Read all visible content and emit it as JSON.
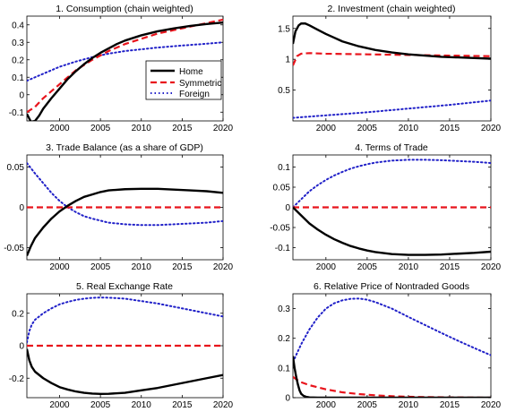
{
  "figure": {
    "colors": {
      "home": "#000000",
      "symmetric": "#e8141c",
      "foreign": "#2020c8",
      "axis": "#000000"
    }
  },
  "chart_data": [
    {
      "type": "line",
      "title": "1. Consumption (chain weighted)",
      "xlim": [
        1996,
        2020
      ],
      "ylim": [
        -0.15,
        0.45
      ],
      "xticks": [
        2000,
        2005,
        2010,
        2015,
        2020
      ],
      "xtick_labels": [
        "2000",
        "2005",
        "2010",
        "2015",
        "2020"
      ],
      "yticks": [
        -0.1,
        0,
        0.1,
        0.2,
        0.3,
        0.4
      ],
      "ytick_labels": [
        "-0.1",
        "0",
        "0.1",
        "0.2",
        "0.3",
        "0.4"
      ],
      "legend": {
        "placement": "center-right",
        "entries": [
          "Home",
          "Symmetric",
          "Foreign"
        ]
      },
      "series": [
        {
          "name": "Home",
          "style": "solid",
          "x": [
            1996,
            1996.5,
            1997,
            1997.5,
            1998,
            1999,
            2000,
            2001,
            2002,
            2003,
            2004,
            2005,
            2006,
            2007,
            2008,
            2010,
            2012,
            2014,
            2016,
            2018,
            2020
          ],
          "y": [
            -0.11,
            -0.155,
            -0.15,
            -0.12,
            -0.08,
            -0.02,
            0.035,
            0.09,
            0.135,
            0.175,
            0.21,
            0.24,
            0.265,
            0.29,
            0.31,
            0.34,
            0.363,
            0.38,
            0.394,
            0.405,
            0.413
          ]
        },
        {
          "name": "Symmetric",
          "style": "dashed",
          "x": [
            1996,
            1997,
            1998,
            1999,
            2000,
            2001,
            2002,
            2003,
            2004,
            2005,
            2006,
            2007,
            2008,
            2010,
            2012,
            2014,
            2016,
            2018,
            2020
          ],
          "y": [
            -0.1,
            -0.07,
            -0.02,
            0.02,
            0.06,
            0.1,
            0.14,
            0.17,
            0.2,
            0.225,
            0.25,
            0.27,
            0.29,
            0.32,
            0.35,
            0.37,
            0.39,
            0.41,
            0.43
          ]
        },
        {
          "name": "Foreign",
          "style": "dotted",
          "x": [
            1996,
            1997,
            1998,
            2000,
            2002,
            2004,
            2006,
            2008,
            2010,
            2012,
            2014,
            2016,
            2018,
            2020
          ],
          "y": [
            0.08,
            0.1,
            0.12,
            0.16,
            0.19,
            0.215,
            0.235,
            0.25,
            0.26,
            0.27,
            0.278,
            0.285,
            0.292,
            0.3
          ]
        }
      ]
    },
    {
      "type": "line",
      "title": "2. Investment (chain weighted)",
      "xlim": [
        1996,
        2020
      ],
      "ylim": [
        0,
        1.7
      ],
      "xticks": [
        2000,
        2005,
        2010,
        2015,
        2020
      ],
      "xtick_labels": [
        "2000",
        "2005",
        "2010",
        "2015",
        "2020"
      ],
      "yticks": [
        0.5,
        1,
        1.5
      ],
      "ytick_labels": [
        "0.5",
        "1",
        "1.5"
      ],
      "series": [
        {
          "name": "Home",
          "style": "solid",
          "x": [
            1996,
            1996.3,
            1996.7,
            1997,
            1997.5,
            1998,
            1999,
            2000,
            2001,
            2002,
            2004,
            2006,
            2008,
            2010,
            2012,
            2014,
            2016,
            2018,
            2020
          ],
          "y": [
            1.25,
            1.45,
            1.55,
            1.58,
            1.58,
            1.55,
            1.48,
            1.41,
            1.35,
            1.29,
            1.21,
            1.15,
            1.11,
            1.08,
            1.06,
            1.04,
            1.03,
            1.02,
            1.01
          ]
        },
        {
          "name": "Symmetric",
          "style": "dashed",
          "x": [
            1996,
            1996.5,
            1997,
            1998,
            2000,
            2005,
            2010,
            2015,
            2020
          ],
          "y": [
            0.9,
            1.05,
            1.09,
            1.1,
            1.09,
            1.08,
            1.07,
            1.06,
            1.05
          ]
        },
        {
          "name": "Foreign",
          "style": "dotted",
          "x": [
            1996,
            2000,
            2005,
            2010,
            2015,
            2020
          ],
          "y": [
            0.05,
            0.09,
            0.14,
            0.2,
            0.26,
            0.33
          ]
        }
      ]
    },
    {
      "type": "line",
      "title": "3. Trade Balance (as a share of GDP)",
      "xlim": [
        1996,
        2020
      ],
      "ylim": [
        -0.065,
        0.065
      ],
      "xticks": [
        2000,
        2005,
        2010,
        2015,
        2020
      ],
      "xtick_labels": [
        "2000",
        "2005",
        "2010",
        "2015",
        "2020"
      ],
      "yticks": [
        -0.05,
        0,
        0.05
      ],
      "ytick_labels": [
        "-0.05",
        "0",
        "0.05"
      ],
      "series": [
        {
          "name": "Home",
          "style": "solid",
          "x": [
            1996,
            1996.5,
            1997,
            1998,
            1999,
            2000,
            2001,
            2002,
            2003,
            2004,
            2005,
            2006,
            2008,
            2010,
            2012,
            2014,
            2016,
            2018,
            2020
          ],
          "y": [
            -0.06,
            -0.048,
            -0.038,
            -0.025,
            -0.014,
            -0.005,
            0.002,
            0.008,
            0.013,
            0.016,
            0.019,
            0.021,
            0.0225,
            0.023,
            0.023,
            0.022,
            0.021,
            0.02,
            0.018
          ]
        },
        {
          "name": "Symmetric",
          "style": "dashed",
          "x": [
            1996,
            2020
          ],
          "y": [
            0,
            0
          ]
        },
        {
          "name": "Foreign",
          "style": "dotted",
          "x": [
            1996,
            1997,
            1998,
            1999,
            2000,
            2001,
            2002,
            2003,
            2004,
            2006,
            2008,
            2010,
            2012,
            2014,
            2016,
            2018,
            2020
          ],
          "y": [
            0.055,
            0.042,
            0.03,
            0.018,
            0.008,
            0,
            -0.006,
            -0.011,
            -0.014,
            -0.019,
            -0.021,
            -0.022,
            -0.022,
            -0.021,
            -0.02,
            -0.019,
            -0.017
          ]
        }
      ]
    },
    {
      "type": "line",
      "title": "4. Terms of Trade",
      "xlim": [
        1996,
        2020
      ],
      "ylim": [
        -0.13,
        0.13
      ],
      "xticks": [
        2000,
        2005,
        2010,
        2015,
        2020
      ],
      "xtick_labels": [
        "2000",
        "2005",
        "2010",
        "2015",
        "2020"
      ],
      "yticks": [
        -0.1,
        -0.05,
        0,
        0.05,
        0.1
      ],
      "ytick_labels": [
        "-0.1",
        "-0.05",
        "0",
        "0.05",
        "0.1"
      ],
      "series": [
        {
          "name": "Home",
          "style": "solid",
          "x": [
            1996,
            1997,
            1998,
            1999,
            2000,
            2001,
            2002,
            2003,
            2004,
            2005,
            2006,
            2008,
            2010,
            2012,
            2014,
            2016,
            2018,
            2020
          ],
          "y": [
            0,
            -0.02,
            -0.04,
            -0.055,
            -0.068,
            -0.079,
            -0.088,
            -0.096,
            -0.102,
            -0.107,
            -0.111,
            -0.116,
            -0.118,
            -0.118,
            -0.117,
            -0.115,
            -0.113,
            -0.11
          ]
        },
        {
          "name": "Symmetric",
          "style": "dashed",
          "x": [
            1996,
            2020
          ],
          "y": [
            0,
            0
          ]
        },
        {
          "name": "Foreign",
          "style": "dotted",
          "x": [
            1996,
            1997,
            1998,
            1999,
            2000,
            2001,
            2002,
            2003,
            2004,
            2005,
            2006,
            2008,
            2010,
            2012,
            2014,
            2016,
            2018,
            2020
          ],
          "y": [
            0,
            0.02,
            0.04,
            0.055,
            0.068,
            0.079,
            0.088,
            0.096,
            0.102,
            0.107,
            0.111,
            0.116,
            0.118,
            0.118,
            0.117,
            0.115,
            0.113,
            0.11
          ]
        }
      ]
    },
    {
      "type": "line",
      "title": "5. Real Exchange Rate",
      "xlim": [
        1996,
        2020
      ],
      "ylim": [
        -0.32,
        0.32
      ],
      "xticks": [
        2000,
        2005,
        2010,
        2015,
        2020
      ],
      "xtick_labels": [
        "2000",
        "2005",
        "2010",
        "2015",
        "2020"
      ],
      "yticks": [
        -0.2,
        0,
        0.2
      ],
      "ytick_labels": [
        "-0.2",
        "0",
        "0.2"
      ],
      "series": [
        {
          "name": "Home",
          "style": "solid",
          "x": [
            1996,
            1996.3,
            1996.6,
            1997,
            1998,
            1999,
            2000,
            2001,
            2002,
            2003,
            2004,
            2005,
            2006,
            2008,
            2010,
            2012,
            2014,
            2016,
            2018,
            2020
          ],
          "y": [
            -0.02,
            -0.09,
            -0.13,
            -0.16,
            -0.2,
            -0.23,
            -0.255,
            -0.27,
            -0.282,
            -0.29,
            -0.295,
            -0.297,
            -0.296,
            -0.29,
            -0.275,
            -0.26,
            -0.24,
            -0.22,
            -0.2,
            -0.18
          ]
        },
        {
          "name": "Symmetric",
          "style": "dashed",
          "x": [
            1996,
            2020
          ],
          "y": [
            0,
            0
          ]
        },
        {
          "name": "Foreign",
          "style": "dotted",
          "x": [
            1996,
            1996.3,
            1996.6,
            1997,
            1998,
            1999,
            2000,
            2001,
            2002,
            2003,
            2004,
            2005,
            2006,
            2008,
            2010,
            2012,
            2014,
            2016,
            2018,
            2020
          ],
          "y": [
            0.02,
            0.09,
            0.13,
            0.16,
            0.2,
            0.23,
            0.255,
            0.27,
            0.282,
            0.29,
            0.295,
            0.297,
            0.296,
            0.29,
            0.275,
            0.26,
            0.24,
            0.22,
            0.2,
            0.18
          ]
        }
      ]
    },
    {
      "type": "line",
      "title": "6. Relative Price of Nontraded Goods",
      "xlim": [
        1996,
        2020
      ],
      "ylim": [
        0,
        0.35
      ],
      "xticks": [
        2000,
        2005,
        2010,
        2015,
        2020
      ],
      "xtick_labels": [
        "2000",
        "2005",
        "2010",
        "2015",
        "2020"
      ],
      "yticks": [
        0,
        0.1,
        0.2,
        0.3
      ],
      "ytick_labels": [
        "0",
        "0.1",
        "0.2",
        "0.3"
      ],
      "series": [
        {
          "name": "Home",
          "style": "solid",
          "x": [
            1996,
            1996.2,
            1996.4,
            1996.6,
            1996.8,
            1997,
            1997.3,
            1997.6,
            1998,
            1999,
            2000,
            2005,
            2010,
            2015,
            2020
          ],
          "y": [
            0.14,
            0.1,
            0.07,
            0.045,
            0.025,
            0.013,
            0.006,
            0.003,
            0.001,
            0.0,
            0.0,
            0.0,
            0.0,
            0.0,
            0.0
          ]
        },
        {
          "name": "Symmetric",
          "style": "dashed",
          "x": [
            1996,
            1996.5,
            1997,
            1998,
            1999,
            2000,
            2001,
            2002,
            2004,
            2006,
            2008,
            2010,
            2012,
            2015,
            2020
          ],
          "y": [
            0.07,
            0.06,
            0.052,
            0.042,
            0.035,
            0.028,
            0.023,
            0.018,
            0.012,
            0.008,
            0.005,
            0.003,
            0.002,
            0.001,
            0.0
          ]
        },
        {
          "name": "Foreign",
          "style": "dotted",
          "x": [
            1996,
            1996.5,
            1997,
            1998,
            1999,
            2000,
            2001,
            2002,
            2003,
            2004,
            2005,
            2006,
            2008,
            2010,
            2012,
            2014,
            2016,
            2018,
            2020
          ],
          "y": [
            0.12,
            0.15,
            0.18,
            0.23,
            0.27,
            0.3,
            0.318,
            0.328,
            0.333,
            0.334,
            0.33,
            0.322,
            0.3,
            0.272,
            0.245,
            0.218,
            0.192,
            0.167,
            0.143
          ]
        }
      ]
    }
  ]
}
